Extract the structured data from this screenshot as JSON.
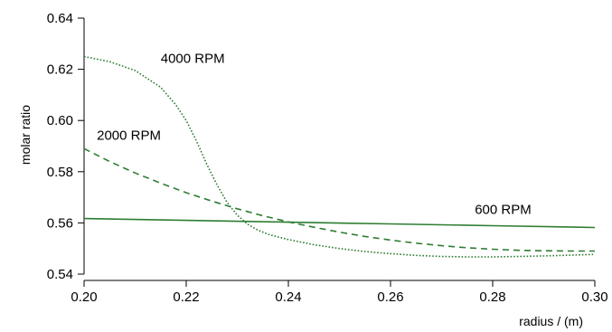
{
  "chart_data": {
    "type": "line",
    "title": "",
    "xlabel": "radius / (m)",
    "ylabel": "molar ratio",
    "xlim": [
      0.2,
      0.3
    ],
    "ylim": [
      0.54,
      0.64
    ],
    "grid": false,
    "legend": "none",
    "x_ticks": [
      "0.20",
      "0.22",
      "0.24",
      "0.26",
      "0.28",
      "0.30"
    ],
    "y_ticks": [
      "0.54",
      "0.56",
      "0.58",
      "0.60",
      "0.62",
      "0.64"
    ],
    "line_color": "#2e7d32",
    "series": [
      {
        "name": "600 RPM",
        "style": "solid",
        "x": [
          0.2,
          0.22,
          0.24,
          0.26,
          0.28,
          0.3
        ],
        "y": [
          0.5617,
          0.561,
          0.5603,
          0.5596,
          0.5589,
          0.5582
        ]
      },
      {
        "name": "2000 RPM",
        "style": "dashed",
        "x": [
          0.2,
          0.205,
          0.21,
          0.215,
          0.22,
          0.225,
          0.23,
          0.235,
          0.24,
          0.245,
          0.25,
          0.255,
          0.26,
          0.265,
          0.27,
          0.275,
          0.28,
          0.285,
          0.29,
          0.295,
          0.3
        ],
        "y": [
          0.589,
          0.584,
          0.5795,
          0.5755,
          0.5718,
          0.5685,
          0.5655,
          0.5628,
          0.5604,
          0.5583,
          0.5564,
          0.5547,
          0.5533,
          0.5521,
          0.5511,
          0.5503,
          0.5497,
          0.5493,
          0.5491,
          0.549,
          0.549
        ]
      },
      {
        "name": "4000 RPM",
        "style": "dotted",
        "x": [
          0.2,
          0.205,
          0.21,
          0.215,
          0.218,
          0.22,
          0.222,
          0.224,
          0.226,
          0.228,
          0.23,
          0.232,
          0.234,
          0.236,
          0.238,
          0.24,
          0.245,
          0.25,
          0.255,
          0.26,
          0.265,
          0.27,
          0.275,
          0.28,
          0.285,
          0.29,
          0.295,
          0.3
        ],
        "y": [
          0.625,
          0.623,
          0.6195,
          0.613,
          0.606,
          0.6,
          0.592,
          0.583,
          0.575,
          0.568,
          0.563,
          0.5595,
          0.5572,
          0.5556,
          0.5545,
          0.5535,
          0.5515,
          0.55,
          0.5488,
          0.548,
          0.5473,
          0.5469,
          0.5467,
          0.5467,
          0.5469,
          0.5471,
          0.5474,
          0.5477
        ]
      }
    ],
    "annotations": [
      {
        "text": "4000 RPM",
        "x": 0.215,
        "y": 0.6225
      },
      {
        "text": "2000 RPM",
        "x": 0.2025,
        "y": 0.5925
      },
      {
        "text": "600 RPM",
        "x": 0.2765,
        "y": 0.5635
      }
    ]
  }
}
